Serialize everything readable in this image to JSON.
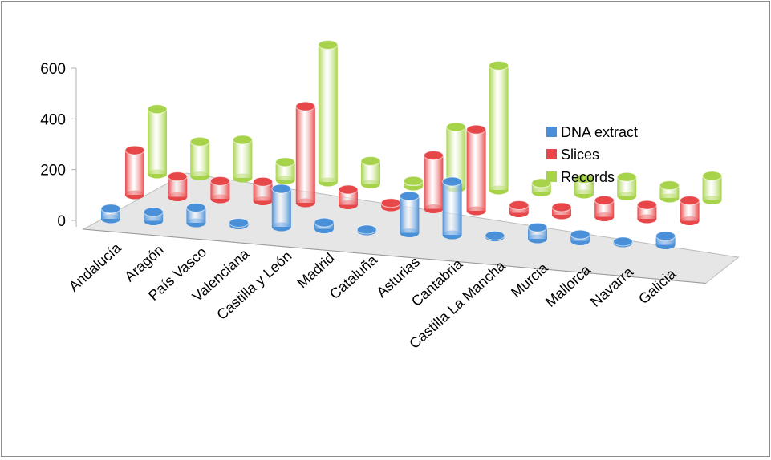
{
  "chart_data": {
    "type": "bar",
    "style": "3d-cylinder",
    "categories": [
      "Andalucía",
      "Aragón",
      "País Vasco",
      "Valenciana",
      "Castilla y León",
      "Madrid",
      "Cataluña",
      "Asturias",
      "Cantabria",
      "Castilla La Mancha",
      "Murcia",
      "Mallorca",
      "Navarra",
      "Galicia"
    ],
    "series": [
      {
        "name": "DNA extract",
        "color": "#4a90d9",
        "values": [
          40,
          35,
          60,
          8,
          150,
          25,
          5,
          145,
          210,
          5,
          45,
          25,
          5,
          35
        ]
      },
      {
        "name": "Slices",
        "color": "#e8474a",
        "values": [
          175,
          80,
          70,
          75,
          380,
          60,
          15,
          210,
          320,
          30,
          30,
          65,
          55,
          80
        ]
      },
      {
        "name": "Records",
        "color": "#a7d34a",
        "values": [
          255,
          135,
          150,
          70,
          540,
          90,
          20,
          240,
          490,
          35,
          60,
          75,
          50,
          95
        ]
      }
    ],
    "yticks": [
      0,
      200,
      400,
      600
    ],
    "ylim": [
      0,
      600
    ],
    "legend_position": "right",
    "grid": false
  }
}
